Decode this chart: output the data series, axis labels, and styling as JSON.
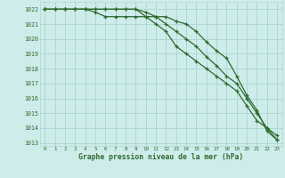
{
  "title": "Graphe pression niveau de la mer (hPa)",
  "background_color": "#ceecea",
  "grid_color": "#add8d4",
  "line_color": "#2d6a2d",
  "xlim": [
    -0.5,
    23.5
  ],
  "ylim": [
    1012.8,
    1022.5
  ],
  "yticks": [
    1013,
    1014,
    1015,
    1016,
    1017,
    1018,
    1019,
    1020,
    1021,
    1022
  ],
  "xticks": [
    0,
    1,
    2,
    3,
    4,
    5,
    6,
    7,
    8,
    9,
    10,
    11,
    12,
    13,
    14,
    15,
    16,
    17,
    18,
    19,
    20,
    21,
    22,
    23
  ],
  "series": [
    [
      1022,
      1022,
      1022,
      1022,
      1022,
      1022,
      1022,
      1022,
      1022,
      1022,
      1021.8,
      1021.5,
      1021,
      1020.5,
      1020,
      1019.5,
      1018.8,
      1018.2,
      1017.5,
      1017,
      1016,
      1015,
      1014,
      1013.2
    ],
    [
      1022,
      1022,
      1022,
      1022,
      1022,
      1021.8,
      1021.5,
      1021.5,
      1021.5,
      1021.5,
      1021.5,
      1021.5,
      1021.5,
      1021.2,
      1021,
      1020.5,
      1019.8,
      1019.2,
      1018.7,
      1017.5,
      1016.2,
      1015.2,
      1013.8,
      1013.2
    ],
    [
      1022,
      1022,
      1022,
      1022,
      1022,
      1022,
      1022,
      1022,
      1022,
      1022,
      1021.5,
      1021,
      1020.5,
      1019.5,
      1019,
      1018.5,
      1018,
      1017.5,
      1017,
      1016.5,
      1015.5,
      1014.5,
      1014,
      1013.5
    ]
  ]
}
